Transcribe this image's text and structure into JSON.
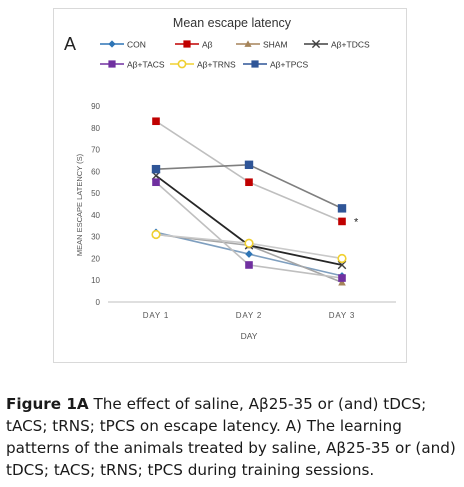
{
  "chart_data": {
    "type": "line",
    "title": "Mean escape latency",
    "panel_label": "A",
    "xlabel": "DAY",
    "ylabel": "MEAN ESCAPE LATENCY (S)",
    "categories": [
      "DAY 1",
      "DAY 2",
      "DAY 3"
    ],
    "ylim": [
      0,
      90
    ],
    "yticks": [
      0,
      10,
      20,
      30,
      40,
      50,
      60,
      70,
      80,
      90
    ],
    "grid": false,
    "legend_position": "top",
    "series": [
      {
        "name": "CON",
        "values": [
          32,
          22,
          12
        ],
        "color": "#2e75b6",
        "marker": "diamond"
      },
      {
        "name": "Aβ",
        "values": [
          83,
          55,
          37
        ],
        "color": "#c00000",
        "marker": "square"
      },
      {
        "name": "SHAM",
        "values": [
          31,
          26,
          9
        ],
        "color": "#a5845a",
        "marker": "triangle"
      },
      {
        "name": "Aβ+TDCS",
        "values": [
          58,
          26,
          17
        ],
        "color": "#404040",
        "marker": "x"
      },
      {
        "name": "Aβ+TACS",
        "values": [
          55,
          17,
          11
        ],
        "color": "#7030a0",
        "marker": "square"
      },
      {
        "name": "Aβ+TRNS",
        "values": [
          31,
          27,
          20
        ],
        "color": "#f0d030",
        "marker": "circle"
      },
      {
        "name": "Aβ+TPCS",
        "values": [
          61,
          63,
          43
        ],
        "color": "#2f5597",
        "marker": "square"
      }
    ],
    "annotations": [
      {
        "text": "*",
        "category": "DAY 3",
        "value": 37
      }
    ]
  },
  "caption": {
    "label": "Figure 1A",
    "text": " The effect of saline, Aβ25-35 or (and) tDCS; tACS; tRNS; tPCS on escape latency. A) The learning patterns of the animals treated by saline, Aβ25-35 or (and) tDCS; tACS; tRNS; tPCS during training sessions."
  }
}
